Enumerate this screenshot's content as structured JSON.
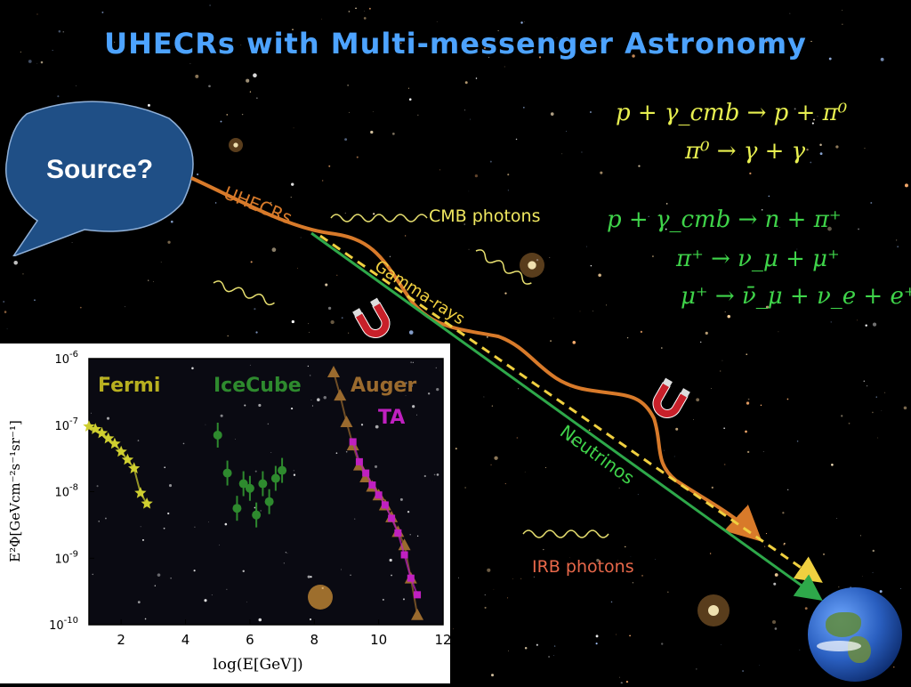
{
  "slide": {
    "title": "UHECRs with Multi-messenger Astronomy",
    "bubble_text": "Source?",
    "equations": {
      "eq1": "p + γ_cmb → p + π⁰",
      "eq2": "π⁰ → γ + γ",
      "eq3": "p + γ_cmb → n + π⁺",
      "eq4": "π⁺ → ν_μ + μ⁺",
      "eq5": "μ⁺ → ν̄_μ + ν_e + e⁺"
    },
    "path_labels": {
      "uhecr": "UHECRs",
      "gamma": "Gamma-rays",
      "neutrino": "Neutrinos"
    },
    "photon_labels": {
      "cmb": "CMB photons",
      "irb": "IRB photons"
    },
    "colors": {
      "title": "#4da3ff",
      "uhecr": "#d87a2a",
      "gamma": "#f0d040",
      "neutrino": "#2ea84a",
      "equation_yellow": "#e8f050",
      "equation_green": "#3fd44a",
      "bubble": "#1f4f86"
    }
  },
  "chart_data": {
    "type": "scatter",
    "xlabel": "log(E[GeV])",
    "ylabel": "E²Φ[GeVcm⁻²s⁻¹sr⁻¹]",
    "xlim": [
      1,
      12
    ],
    "ylim_log10": [
      -10,
      -6
    ],
    "x_ticks": [
      "2",
      "4",
      "6",
      "8",
      "10",
      "12"
    ],
    "y_ticks": [
      "10^-6",
      "10^-7",
      "10^-8",
      "10^-9",
      "10^-10"
    ],
    "grid": false,
    "series": [
      {
        "name": "Fermi",
        "color": "#cfcf30",
        "marker": "star",
        "x": [
          1.0,
          1.2,
          1.4,
          1.6,
          1.8,
          2.0,
          2.2,
          2.4,
          2.6,
          2.8
        ],
        "log10_y": [
          -7.02,
          -7.06,
          -7.12,
          -7.2,
          -7.28,
          -7.4,
          -7.52,
          -7.65,
          -8.02,
          -8.18
        ]
      },
      {
        "name": "IceCube",
        "color": "#2e8a2e",
        "marker": "circle",
        "x": [
          5.0,
          5.3,
          5.6,
          5.8,
          6.0,
          6.2,
          6.4,
          6.6,
          6.8,
          7.0
        ],
        "log10_y": [
          -7.15,
          -7.72,
          -8.25,
          -7.88,
          -7.95,
          -8.35,
          -7.88,
          -8.15,
          -7.8,
          -7.68
        ]
      },
      {
        "name": "Auger",
        "color": "#9a6a2e",
        "marker": "triangle",
        "x": [
          8.6,
          8.8,
          9.0,
          9.2,
          9.4,
          9.6,
          9.8,
          10.0,
          10.2,
          10.4,
          10.6,
          10.8,
          11.0,
          11.2
        ],
        "log10_y": [
          -6.2,
          -6.55,
          -6.95,
          -7.3,
          -7.6,
          -7.78,
          -7.92,
          -8.05,
          -8.2,
          -8.38,
          -8.6,
          -8.8,
          -9.3,
          -9.85
        ]
      },
      {
        "name": "TA",
        "color": "#c020c0",
        "marker": "square",
        "x": [
          9.2,
          9.4,
          9.6,
          9.8,
          10.0,
          10.2,
          10.4,
          10.6,
          10.8,
          11.0,
          11.2
        ],
        "log10_y": [
          -7.25,
          -7.55,
          -7.72,
          -7.9,
          -8.05,
          -8.2,
          -8.4,
          -8.62,
          -8.95,
          -9.3,
          -9.55
        ]
      }
    ]
  }
}
